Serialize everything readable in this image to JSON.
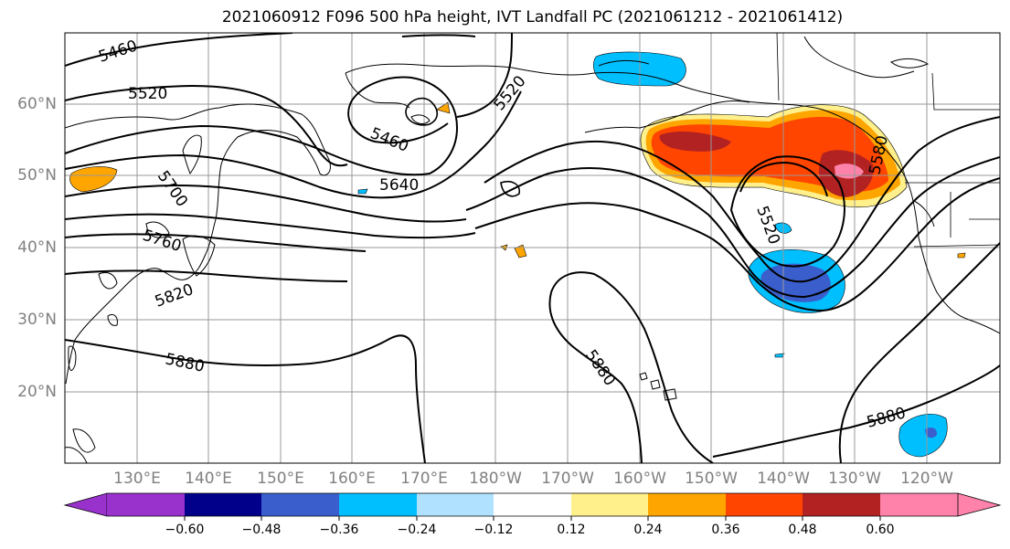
{
  "title": "2021060912 F096 500 hPa height, IVT Landfall PC (2021061212 - 2021061412)",
  "lat_labels": [
    "60°N",
    "50°N",
    "40°N",
    "30°N",
    "20°N"
  ],
  "lon_labels": [
    "130°E",
    "140°E",
    "150°E",
    "160°E",
    "170°E",
    "180°W",
    "170°W",
    "160°W",
    "150°W",
    "140°W",
    "130°W",
    "120°W"
  ],
  "contour_labels": [
    "5460",
    "5520",
    "5460",
    "5520",
    "5700",
    "5640",
    "5760",
    "5820",
    "5880",
    "5520",
    "5580",
    "5880",
    "5880"
  ],
  "colorbar": {
    "ticks": [
      "−0.60",
      "−0.48",
      "−0.36",
      "−0.24",
      "−0.12",
      "0.12",
      "0.24",
      "0.36",
      "0.48",
      "0.60"
    ],
    "colors": [
      "#9932cc",
      "#00008b",
      "#3a5fcd",
      "#00bfff",
      "#b0e2ff",
      "#ffffff",
      "#fff08c",
      "#ffa500",
      "#ff4500",
      "#b22222",
      "#ff82ab",
      "#ff82ab"
    ]
  }
}
